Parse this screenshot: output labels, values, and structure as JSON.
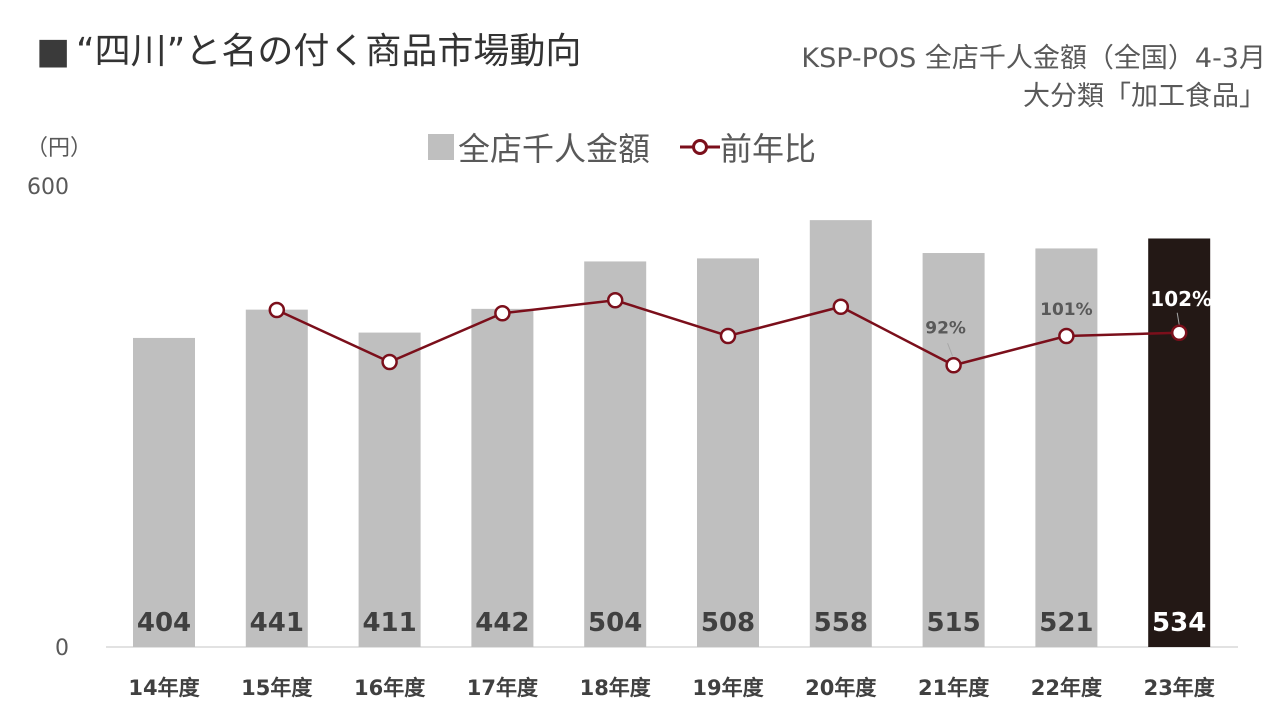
{
  "title": {
    "marker": "■",
    "text": "“四川”と名の付く商品市場動向"
  },
  "source": {
    "line1": "KSP-POS  全店千人金額（全国）4-3月",
    "line2": "大分類「加工食品」"
  },
  "legend": {
    "bar_label": "全店千人金額",
    "line_label": "前年比"
  },
  "colors": {
    "bar": "#bfbfbf",
    "highlight_bar": "#231815",
    "line": "#7b0f1b",
    "marker_fill": "#ffffff"
  },
  "chart_data": {
    "type": "bar",
    "title": "“四川”と名の付く商品市場動向",
    "ylabel": "（円）",
    "ylim": [
      0,
      600
    ],
    "yticks": [
      "0",
      "600"
    ],
    "categories": [
      "14年度",
      "15年度",
      "16年度",
      "17年度",
      "18年度",
      "19年度",
      "20年度",
      "21年度",
      "22年度",
      "23年度"
    ],
    "series": [
      {
        "name": "全店千人金額",
        "type": "bar",
        "values": [
          404,
          441,
          411,
          442,
          504,
          508,
          558,
          515,
          521,
          534
        ],
        "labels": [
          "404",
          "441",
          "411",
          "442",
          "504",
          "508",
          "558",
          "515",
          "521",
          "534"
        ],
        "highlight_index": 9
      },
      {
        "name": "前年比",
        "type": "line",
        "unit": "%",
        "values": [
          null,
          109,
          93,
          108,
          112,
          101,
          110,
          92,
          101,
          102
        ],
        "shown_labels": [
          null,
          null,
          null,
          null,
          null,
          null,
          null,
          "92%",
          "101%",
          "102%"
        ]
      }
    ]
  }
}
